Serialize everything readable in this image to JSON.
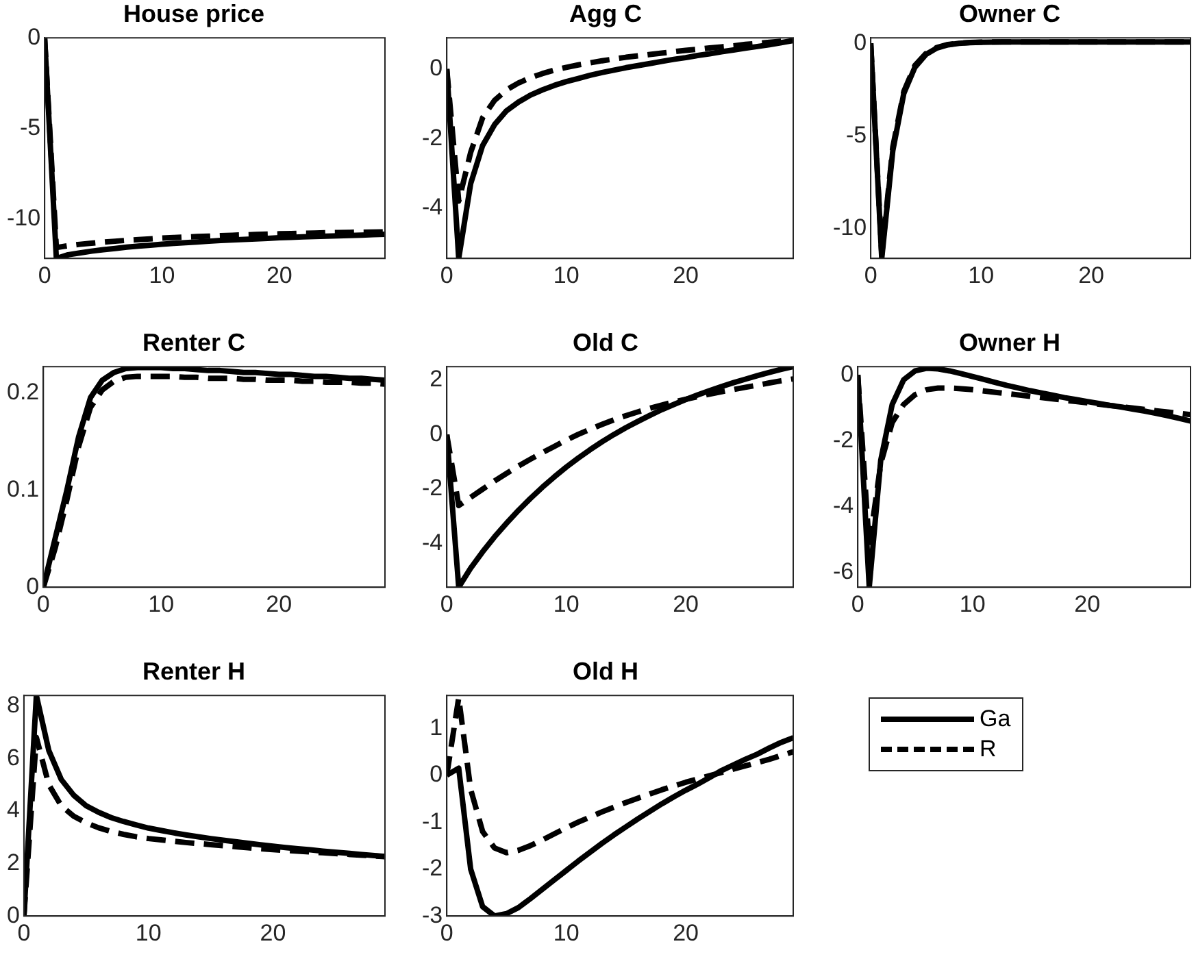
{
  "chart_data": [
    {
      "type": "line",
      "title": "House price",
      "x": [
        0,
        1,
        2,
        3,
        4,
        5,
        6,
        7,
        8,
        9,
        10,
        11,
        12,
        13,
        14,
        15,
        16,
        17,
        18,
        19,
        20,
        21,
        22,
        23,
        24,
        25,
        26,
        27,
        28,
        29
      ],
      "xlim": [
        0,
        29
      ],
      "xticks": [
        0,
        10,
        20
      ],
      "ylim": [
        -12.2,
        0
      ],
      "yticks": [
        -10,
        -5,
        0
      ],
      "grid": false,
      "marker": "none",
      "series": [
        {
          "color": "#000000",
          "line_style": "solid",
          "values": [
            0,
            -12.2,
            -12.0,
            -11.9,
            -11.8,
            -11.72,
            -11.65,
            -11.58,
            -11.52,
            -11.47,
            -11.42,
            -11.37,
            -11.33,
            -11.29,
            -11.25,
            -11.21,
            -11.18,
            -11.15,
            -11.12,
            -11.09,
            -11.06,
            -11.04,
            -11.01,
            -10.99,
            -10.97,
            -10.95,
            -10.93,
            -10.91,
            -10.89,
            -10.87
          ]
        },
        {
          "color": "#000000",
          "line_style": "dashed",
          "values": [
            0,
            -11.6,
            -11.5,
            -11.42,
            -11.36,
            -11.3,
            -11.25,
            -11.2,
            -11.16,
            -11.12,
            -11.08,
            -11.05,
            -11.02,
            -10.99,
            -10.97,
            -10.94,
            -10.92,
            -10.9,
            -10.88,
            -10.86,
            -10.84,
            -10.83,
            -10.81,
            -10.8,
            -10.78,
            -10.77,
            -10.76,
            -10.75,
            -10.74,
            -10.73
          ]
        }
      ]
    },
    {
      "type": "line",
      "title": "Agg C",
      "x": [
        0,
        1,
        2,
        3,
        4,
        5,
        6,
        7,
        8,
        9,
        10,
        11,
        12,
        13,
        14,
        15,
        16,
        17,
        18,
        19,
        20,
        21,
        22,
        23,
        24,
        25,
        26,
        27,
        28,
        29
      ],
      "xlim": [
        0,
        29
      ],
      "xticks": [
        0,
        10,
        20
      ],
      "ylim": [
        -5.45,
        0.9
      ],
      "yticks": [
        -4,
        -2,
        0
      ],
      "grid": false,
      "marker": "none",
      "series": [
        {
          "color": "#000000",
          "line_style": "solid",
          "values": [
            0,
            -5.45,
            -3.3,
            -2.2,
            -1.6,
            -1.2,
            -0.95,
            -0.75,
            -0.6,
            -0.47,
            -0.36,
            -0.27,
            -0.18,
            -0.1,
            -0.03,
            0.04,
            0.1,
            0.16,
            0.22,
            0.28,
            0.33,
            0.39,
            0.44,
            0.5,
            0.55,
            0.6,
            0.65,
            0.7,
            0.76,
            0.82
          ]
        },
        {
          "color": "#000000",
          "line_style": "dashed",
          "values": [
            0,
            -3.8,
            -2.4,
            -1.4,
            -0.9,
            -0.6,
            -0.4,
            -0.25,
            -0.13,
            -0.03,
            0.05,
            0.12,
            0.18,
            0.24,
            0.29,
            0.34,
            0.38,
            0.42,
            0.46,
            0.5,
            0.54,
            0.57,
            0.61,
            0.64,
            0.67,
            0.71,
            0.74,
            0.77,
            0.8,
            0.83
          ]
        }
      ]
    },
    {
      "type": "line",
      "title": "Owner C",
      "x": [
        0,
        1,
        2,
        3,
        4,
        5,
        6,
        7,
        8,
        9,
        10,
        11,
        12,
        13,
        14,
        15,
        16,
        17,
        18,
        19,
        20,
        21,
        22,
        23,
        24,
        25,
        26,
        27,
        28,
        29
      ],
      "xlim": [
        0,
        29
      ],
      "xticks": [
        0,
        10,
        20
      ],
      "ylim": [
        -11.6,
        0.3
      ],
      "yticks": [
        -10,
        -5,
        0
      ],
      "grid": false,
      "marker": "none",
      "series": [
        {
          "color": "#000000",
          "line_style": "solid",
          "values": [
            0,
            -11.6,
            -5.8,
            -2.7,
            -1.3,
            -0.6,
            -0.25,
            -0.08,
            0,
            0.04,
            0.06,
            0.07,
            0.08,
            0.08,
            0.08,
            0.08,
            0.08,
            0.08,
            0.08,
            0.08,
            0.08,
            0.08,
            0.08,
            0.08,
            0.08,
            0.08,
            0.08,
            0.08,
            0.08,
            0.08
          ]
        },
        {
          "color": "#000000",
          "line_style": "dashed",
          "values": [
            0,
            -11.4,
            -5.6,
            -2.6,
            -1.2,
            -0.55,
            -0.22,
            -0.06,
            0.01,
            0.05,
            0.07,
            0.08,
            0.08,
            0.08,
            0.08,
            0.08,
            0.08,
            0.08,
            0.08,
            0.08,
            0.08,
            0.08,
            0.08,
            0.08,
            0.08,
            0.08,
            0.08,
            0.08,
            0.08,
            0.08
          ]
        }
      ]
    },
    {
      "type": "line",
      "title": "Renter C",
      "x": [
        0,
        1,
        2,
        3,
        4,
        5,
        6,
        7,
        8,
        9,
        10,
        11,
        12,
        13,
        14,
        15,
        16,
        17,
        18,
        19,
        20,
        21,
        22,
        23,
        24,
        25,
        26,
        27,
        28,
        29
      ],
      "xlim": [
        0,
        29
      ],
      "xticks": [
        0,
        10,
        20
      ],
      "ylim": [
        0,
        0.227
      ],
      "yticks": [
        0,
        0.1,
        0.2
      ],
      "grid": false,
      "marker": "none",
      "series": [
        {
          "color": "#000000",
          "line_style": "solid",
          "values": [
            0,
            0.05,
            0.1,
            0.155,
            0.195,
            0.213,
            0.221,
            0.225,
            0.226,
            0.226,
            0.226,
            0.225,
            0.225,
            0.224,
            0.223,
            0.223,
            0.222,
            0.221,
            0.221,
            0.22,
            0.219,
            0.219,
            0.218,
            0.217,
            0.217,
            0.216,
            0.215,
            0.215,
            0.214,
            0.213
          ]
        },
        {
          "color": "#000000",
          "line_style": "dashed",
          "values": [
            0,
            0.04,
            0.09,
            0.145,
            0.185,
            0.203,
            0.212,
            0.216,
            0.217,
            0.217,
            0.217,
            0.217,
            0.216,
            0.216,
            0.215,
            0.215,
            0.215,
            0.214,
            0.214,
            0.213,
            0.213,
            0.213,
            0.212,
            0.212,
            0.211,
            0.211,
            0.211,
            0.21,
            0.21,
            0.209
          ]
        }
      ]
    },
    {
      "type": "line",
      "title": "Old C",
      "x": [
        0,
        1,
        2,
        3,
        4,
        5,
        6,
        7,
        8,
        9,
        10,
        11,
        12,
        13,
        14,
        15,
        16,
        17,
        18,
        19,
        20,
        21,
        22,
        23,
        24,
        25,
        26,
        27,
        28,
        29
      ],
      "xlim": [
        0,
        29
      ],
      "xticks": [
        0,
        10,
        20
      ],
      "ylim": [
        -5.6,
        2.5
      ],
      "yticks": [
        -4,
        -2,
        0,
        2
      ],
      "grid": false,
      "marker": "none",
      "series": [
        {
          "color": "#000000",
          "line_style": "solid",
          "values": [
            0,
            -5.6,
            -4.9,
            -4.3,
            -3.75,
            -3.25,
            -2.78,
            -2.34,
            -1.93,
            -1.55,
            -1.19,
            -0.86,
            -0.55,
            -0.26,
            0.01,
            0.26,
            0.49,
            0.71,
            0.92,
            1.11,
            1.29,
            1.46,
            1.62,
            1.77,
            1.91,
            2.04,
            2.17,
            2.29,
            2.4,
            2.5
          ]
        },
        {
          "color": "#000000",
          "line_style": "dashed",
          "values": [
            0,
            -2.6,
            -2.3,
            -2.0,
            -1.7,
            -1.42,
            -1.15,
            -0.9,
            -0.66,
            -0.43,
            -0.2,
            0.01,
            0.2,
            0.38,
            0.55,
            0.7,
            0.84,
            0.97,
            1.09,
            1.2,
            1.3,
            1.4,
            1.49,
            1.58,
            1.66,
            1.74,
            1.82,
            1.9,
            1.98,
            2.05
          ]
        }
      ]
    },
    {
      "type": "line",
      "title": "Owner H",
      "x": [
        0,
        1,
        2,
        3,
        4,
        5,
        6,
        7,
        8,
        9,
        10,
        11,
        12,
        13,
        14,
        15,
        16,
        17,
        18,
        19,
        20,
        21,
        22,
        23,
        24,
        25,
        26,
        27,
        28,
        29
      ],
      "xlim": [
        0,
        29
      ],
      "xticks": [
        0,
        10,
        20
      ],
      "ylim": [
        -6.45,
        0.25
      ],
      "yticks": [
        -6,
        -4,
        -2,
        0
      ],
      "grid": false,
      "marker": "none",
      "series": [
        {
          "color": "#000000",
          "line_style": "solid",
          "values": [
            0,
            -6.45,
            -2.6,
            -0.9,
            -0.15,
            0.12,
            0.2,
            0.18,
            0.12,
            0.04,
            -0.05,
            -0.14,
            -0.23,
            -0.32,
            -0.4,
            -0.48,
            -0.55,
            -0.62,
            -0.69,
            -0.75,
            -0.81,
            -0.87,
            -0.93,
            -0.98,
            -1.04,
            -1.1,
            -1.17,
            -1.24,
            -1.32,
            -1.4
          ]
        },
        {
          "color": "#000000",
          "line_style": "dashed",
          "values": [
            0,
            -5.2,
            -2.7,
            -1.45,
            -0.9,
            -0.6,
            -0.45,
            -0.4,
            -0.4,
            -0.42,
            -0.45,
            -0.49,
            -0.53,
            -0.57,
            -0.61,
            -0.65,
            -0.69,
            -0.73,
            -0.77,
            -0.81,
            -0.85,
            -0.89,
            -0.93,
            -0.97,
            -1.01,
            -1.05,
            -1.09,
            -1.13,
            -1.17,
            -1.21
          ]
        }
      ]
    },
    {
      "type": "line",
      "title": "Renter H",
      "x": [
        0,
        1,
        2,
        3,
        4,
        5,
        6,
        7,
        8,
        9,
        10,
        11,
        12,
        13,
        14,
        15,
        16,
        17,
        18,
        19,
        20,
        21,
        22,
        23,
        24,
        25,
        26,
        27,
        28,
        29
      ],
      "xlim": [
        0,
        29
      ],
      "xticks": [
        0,
        10,
        20
      ],
      "ylim": [
        0,
        8.4
      ],
      "yticks": [
        0,
        2,
        4,
        6,
        8
      ],
      "grid": false,
      "marker": "none",
      "series": [
        {
          "color": "#000000",
          "line_style": "solid",
          "values": [
            0,
            8.4,
            6.3,
            5.2,
            4.6,
            4.2,
            3.95,
            3.75,
            3.6,
            3.47,
            3.35,
            3.26,
            3.17,
            3.09,
            3.02,
            2.95,
            2.89,
            2.83,
            2.77,
            2.71,
            2.66,
            2.61,
            2.56,
            2.52,
            2.47,
            2.43,
            2.39,
            2.35,
            2.31,
            2.27
          ]
        },
        {
          "color": "#000000",
          "line_style": "dashed",
          "values": [
            0,
            6.8,
            5.0,
            4.2,
            3.8,
            3.55,
            3.36,
            3.22,
            3.11,
            3.02,
            2.95,
            2.9,
            2.85,
            2.8,
            2.76,
            2.72,
            2.68,
            2.64,
            2.6,
            2.56,
            2.53,
            2.5,
            2.47,
            2.44,
            2.41,
            2.38,
            2.35,
            2.32,
            2.29,
            2.26
          ]
        }
      ]
    },
    {
      "type": "line",
      "title": "Old H",
      "x": [
        0,
        1,
        2,
        3,
        4,
        5,
        6,
        7,
        8,
        9,
        10,
        11,
        12,
        13,
        14,
        15,
        16,
        17,
        18,
        19,
        20,
        21,
        22,
        23,
        24,
        25,
        26,
        27,
        28,
        29
      ],
      "xlim": [
        0,
        29
      ],
      "xticks": [
        0,
        10,
        20
      ],
      "ylim": [
        -3.0,
        1.7
      ],
      "yticks": [
        -3,
        -2,
        -1,
        0,
        1
      ],
      "grid": false,
      "marker": "none",
      "legend": "right",
      "series": [
        {
          "name": "Ga",
          "color": "#000000",
          "line_style": "solid",
          "values": [
            0,
            0.15,
            -2.0,
            -2.8,
            -3.0,
            -2.95,
            -2.82,
            -2.63,
            -2.43,
            -2.23,
            -2.03,
            -1.83,
            -1.64,
            -1.45,
            -1.27,
            -1.1,
            -0.93,
            -0.77,
            -0.61,
            -0.46,
            -0.32,
            -0.19,
            -0.05,
            0.1,
            0.22,
            0.34,
            0.45,
            0.58,
            0.7,
            0.8
          ]
        },
        {
          "name": "R",
          "color": "#000000",
          "line_style": "dashed",
          "values": [
            0,
            1.65,
            -0.3,
            -1.2,
            -1.55,
            -1.65,
            -1.6,
            -1.5,
            -1.38,
            -1.25,
            -1.12,
            -1.0,
            -0.89,
            -0.78,
            -0.68,
            -0.58,
            -0.49,
            -0.4,
            -0.31,
            -0.23,
            -0.15,
            -0.08,
            -0.01,
            0.06,
            0.13,
            0.2,
            0.27,
            0.34,
            0.42,
            0.5
          ]
        }
      ]
    }
  ]
}
